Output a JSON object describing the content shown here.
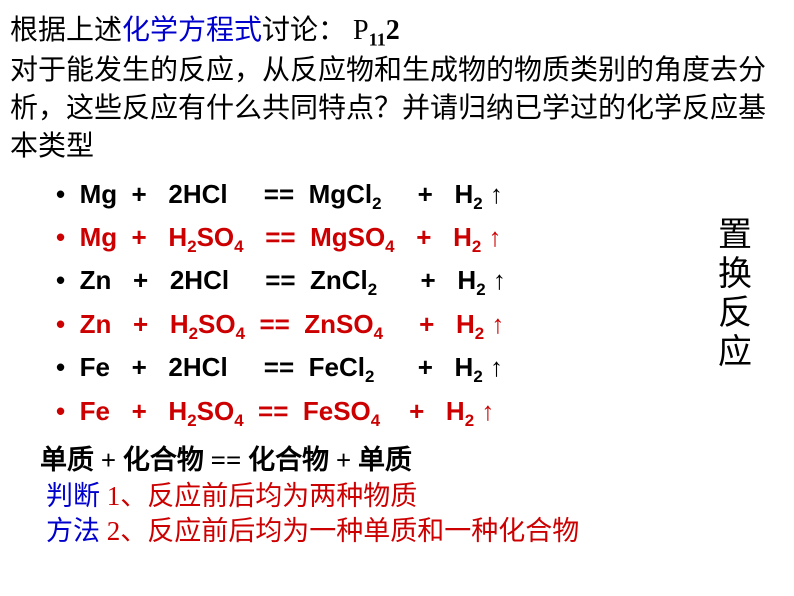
{
  "intro": {
    "part1": "根据上述",
    "part2_blue": "化学方程式",
    "part3": "讨论： P",
    "psub": "11",
    "pnum": "2",
    "line2": "对于能发生的反应，从反应物和生成物的物质类别的角度去分析，这些反应有什么共同特点？并请归纳已学过的化学反应基本类型"
  },
  "equations": [
    {
      "color": "#000000",
      "text": "Mg  +   2HCl     ==  MgCl",
      "sub": "2",
      "tail": "     +   H",
      "sub2": "2",
      "arrow": " ↑"
    },
    {
      "color": "#cc0000",
      "text": "Mg  +   H",
      "sub0": "2",
      "mid": "SO",
      "sub1": "4",
      "eq": "   ==  MgSO",
      "sub": "4",
      "tail": "   +   H",
      "sub2": "2",
      "arrow": " ↑"
    },
    {
      "color": "#000000",
      "text": "Zn   +   2HCl     ==  ZnCl",
      "sub": "2",
      "tail": "      +   H",
      "sub2": "2",
      "arrow": " ↑"
    },
    {
      "color": "#cc0000",
      "text": "Zn   +   H",
      "sub0": "2",
      "mid": "SO",
      "sub1": "4",
      "eq": "  ==  ZnSO",
      "sub": "4",
      "tail": "     +   H",
      "sub2": "2",
      "arrow": " ↑"
    },
    {
      "color": "#000000",
      "text": "Fe   +   2HCl     ==  FeCl",
      "sub": "2",
      "tail": "      +   H",
      "sub2": "2",
      "arrow": " ↑"
    },
    {
      "color": "#cc0000",
      "text": "Fe   +   H",
      "sub0": "2",
      "mid": "SO",
      "sub1": "4",
      "eq": "  ==  FeSO",
      "sub": "4",
      "tail": "    +   H",
      "sub2": "2",
      "arrow": " ↑"
    }
  ],
  "summary": {
    "line": "单质 +   化合物  ==   化合物   +   单质"
  },
  "judge": {
    "label1": "判断",
    "line1": "   1、反应前后均为两种物质",
    "label2": "方法",
    "line2": "   2、反应前后均为一种单质和一种化合物"
  },
  "side": {
    "c1": "置",
    "c2": "换",
    "c3": "反",
    "c4": "应"
  }
}
